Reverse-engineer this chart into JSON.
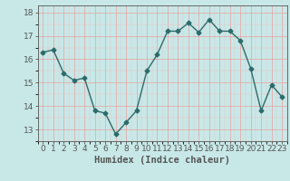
{
  "title": "",
  "xlabel": "Humidex (Indice chaleur)",
  "ylabel": "",
  "x": [
    0,
    1,
    2,
    3,
    4,
    5,
    6,
    7,
    8,
    9,
    10,
    11,
    12,
    13,
    14,
    15,
    16,
    17,
    18,
    19,
    20,
    21,
    22,
    23
  ],
  "y": [
    16.3,
    16.4,
    15.4,
    15.1,
    15.2,
    13.8,
    13.7,
    12.8,
    13.3,
    13.8,
    15.5,
    16.2,
    17.2,
    17.2,
    17.55,
    17.15,
    17.7,
    17.2,
    17.2,
    16.8,
    15.6,
    13.8,
    14.9,
    14.4
  ],
  "line_color": "#2d6b6b",
  "marker": "D",
  "marker_size": 2.5,
  "bg_color": "#c8e8e8",
  "grid_major_color": "#e8a0a0",
  "grid_minor_color": "#f0c0c0",
  "ylim": [
    12.5,
    18.3
  ],
  "yticks": [
    13,
    14,
    15,
    16,
    17,
    18
  ],
  "xlim": [
    -0.5,
    23.5
  ],
  "xticks": [
    0,
    1,
    2,
    3,
    4,
    5,
    6,
    7,
    8,
    9,
    10,
    11,
    12,
    13,
    14,
    15,
    16,
    17,
    18,
    19,
    20,
    21,
    22,
    23
  ],
  "xlabel_fontsize": 7.5,
  "tick_fontsize": 6.5,
  "line_width": 1.0,
  "spine_color": "#555555"
}
